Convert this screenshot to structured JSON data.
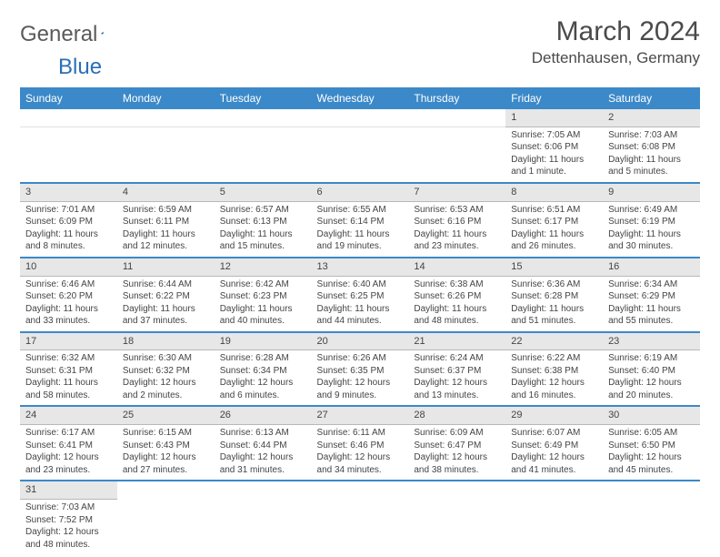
{
  "logo": {
    "word1": "General",
    "word2": "Blue"
  },
  "title": {
    "month": "March 2024",
    "location": "Dettenhausen, Germany"
  },
  "colors": {
    "header_bg": "#3b89c9",
    "header_fg": "#ffffff",
    "daynum_bg": "#e7e7e7",
    "row_divider": "#3b89c9",
    "text": "#444444",
    "logo_gray": "#5a5a5a",
    "logo_blue": "#2a6fb8"
  },
  "dayHeaders": [
    "Sunday",
    "Monday",
    "Tuesday",
    "Wednesday",
    "Thursday",
    "Friday",
    "Saturday"
  ],
  "weeks": [
    [
      null,
      null,
      null,
      null,
      null,
      {
        "num": "1",
        "sunrise": "Sunrise: 7:05 AM",
        "sunset": "Sunset: 6:06 PM",
        "daylight": "Daylight: 11 hours and 1 minute."
      },
      {
        "num": "2",
        "sunrise": "Sunrise: 7:03 AM",
        "sunset": "Sunset: 6:08 PM",
        "daylight": "Daylight: 11 hours and 5 minutes."
      }
    ],
    [
      {
        "num": "3",
        "sunrise": "Sunrise: 7:01 AM",
        "sunset": "Sunset: 6:09 PM",
        "daylight": "Daylight: 11 hours and 8 minutes."
      },
      {
        "num": "4",
        "sunrise": "Sunrise: 6:59 AM",
        "sunset": "Sunset: 6:11 PM",
        "daylight": "Daylight: 11 hours and 12 minutes."
      },
      {
        "num": "5",
        "sunrise": "Sunrise: 6:57 AM",
        "sunset": "Sunset: 6:13 PM",
        "daylight": "Daylight: 11 hours and 15 minutes."
      },
      {
        "num": "6",
        "sunrise": "Sunrise: 6:55 AM",
        "sunset": "Sunset: 6:14 PM",
        "daylight": "Daylight: 11 hours and 19 minutes."
      },
      {
        "num": "7",
        "sunrise": "Sunrise: 6:53 AM",
        "sunset": "Sunset: 6:16 PM",
        "daylight": "Daylight: 11 hours and 23 minutes."
      },
      {
        "num": "8",
        "sunrise": "Sunrise: 6:51 AM",
        "sunset": "Sunset: 6:17 PM",
        "daylight": "Daylight: 11 hours and 26 minutes."
      },
      {
        "num": "9",
        "sunrise": "Sunrise: 6:49 AM",
        "sunset": "Sunset: 6:19 PM",
        "daylight": "Daylight: 11 hours and 30 minutes."
      }
    ],
    [
      {
        "num": "10",
        "sunrise": "Sunrise: 6:46 AM",
        "sunset": "Sunset: 6:20 PM",
        "daylight": "Daylight: 11 hours and 33 minutes."
      },
      {
        "num": "11",
        "sunrise": "Sunrise: 6:44 AM",
        "sunset": "Sunset: 6:22 PM",
        "daylight": "Daylight: 11 hours and 37 minutes."
      },
      {
        "num": "12",
        "sunrise": "Sunrise: 6:42 AM",
        "sunset": "Sunset: 6:23 PM",
        "daylight": "Daylight: 11 hours and 40 minutes."
      },
      {
        "num": "13",
        "sunrise": "Sunrise: 6:40 AM",
        "sunset": "Sunset: 6:25 PM",
        "daylight": "Daylight: 11 hours and 44 minutes."
      },
      {
        "num": "14",
        "sunrise": "Sunrise: 6:38 AM",
        "sunset": "Sunset: 6:26 PM",
        "daylight": "Daylight: 11 hours and 48 minutes."
      },
      {
        "num": "15",
        "sunrise": "Sunrise: 6:36 AM",
        "sunset": "Sunset: 6:28 PM",
        "daylight": "Daylight: 11 hours and 51 minutes."
      },
      {
        "num": "16",
        "sunrise": "Sunrise: 6:34 AM",
        "sunset": "Sunset: 6:29 PM",
        "daylight": "Daylight: 11 hours and 55 minutes."
      }
    ],
    [
      {
        "num": "17",
        "sunrise": "Sunrise: 6:32 AM",
        "sunset": "Sunset: 6:31 PM",
        "daylight": "Daylight: 11 hours and 58 minutes."
      },
      {
        "num": "18",
        "sunrise": "Sunrise: 6:30 AM",
        "sunset": "Sunset: 6:32 PM",
        "daylight": "Daylight: 12 hours and 2 minutes."
      },
      {
        "num": "19",
        "sunrise": "Sunrise: 6:28 AM",
        "sunset": "Sunset: 6:34 PM",
        "daylight": "Daylight: 12 hours and 6 minutes."
      },
      {
        "num": "20",
        "sunrise": "Sunrise: 6:26 AM",
        "sunset": "Sunset: 6:35 PM",
        "daylight": "Daylight: 12 hours and 9 minutes."
      },
      {
        "num": "21",
        "sunrise": "Sunrise: 6:24 AM",
        "sunset": "Sunset: 6:37 PM",
        "daylight": "Daylight: 12 hours and 13 minutes."
      },
      {
        "num": "22",
        "sunrise": "Sunrise: 6:22 AM",
        "sunset": "Sunset: 6:38 PM",
        "daylight": "Daylight: 12 hours and 16 minutes."
      },
      {
        "num": "23",
        "sunrise": "Sunrise: 6:19 AM",
        "sunset": "Sunset: 6:40 PM",
        "daylight": "Daylight: 12 hours and 20 minutes."
      }
    ],
    [
      {
        "num": "24",
        "sunrise": "Sunrise: 6:17 AM",
        "sunset": "Sunset: 6:41 PM",
        "daylight": "Daylight: 12 hours and 23 minutes."
      },
      {
        "num": "25",
        "sunrise": "Sunrise: 6:15 AM",
        "sunset": "Sunset: 6:43 PM",
        "daylight": "Daylight: 12 hours and 27 minutes."
      },
      {
        "num": "26",
        "sunrise": "Sunrise: 6:13 AM",
        "sunset": "Sunset: 6:44 PM",
        "daylight": "Daylight: 12 hours and 31 minutes."
      },
      {
        "num": "27",
        "sunrise": "Sunrise: 6:11 AM",
        "sunset": "Sunset: 6:46 PM",
        "daylight": "Daylight: 12 hours and 34 minutes."
      },
      {
        "num": "28",
        "sunrise": "Sunrise: 6:09 AM",
        "sunset": "Sunset: 6:47 PM",
        "daylight": "Daylight: 12 hours and 38 minutes."
      },
      {
        "num": "29",
        "sunrise": "Sunrise: 6:07 AM",
        "sunset": "Sunset: 6:49 PM",
        "daylight": "Daylight: 12 hours and 41 minutes."
      },
      {
        "num": "30",
        "sunrise": "Sunrise: 6:05 AM",
        "sunset": "Sunset: 6:50 PM",
        "daylight": "Daylight: 12 hours and 45 minutes."
      }
    ],
    [
      {
        "num": "31",
        "sunrise": "Sunrise: 7:03 AM",
        "sunset": "Sunset: 7:52 PM",
        "daylight": "Daylight: 12 hours and 48 minutes."
      },
      null,
      null,
      null,
      null,
      null,
      null
    ]
  ]
}
